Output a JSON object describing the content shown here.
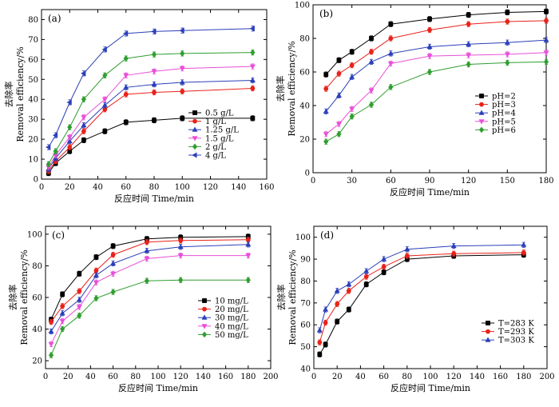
{
  "chart_data": [
    {
      "type": "line",
      "panel_label": "(a)",
      "xlabel": "反应时间 Time/min",
      "ylabel_cn": "去除率",
      "ylabel_en": "Removal efficiency/%",
      "xlim": [
        0,
        160
      ],
      "ylim": [
        0,
        85
      ],
      "xticks": [
        0,
        20,
        40,
        60,
        80,
        100,
        120,
        140,
        160
      ],
      "yticks": [
        0,
        10,
        20,
        30,
        40,
        50,
        60,
        70,
        80
      ],
      "x": [
        5,
        10,
        20,
        30,
        45,
        60,
        80,
        100,
        150
      ],
      "legend_position": "right",
      "series": [
        {
          "name": "0.5 g/L",
          "color": "#000000",
          "marker": "square",
          "values": [
            3,
            8,
            14,
            19.5,
            24,
            28.5,
            29.5,
            30.5,
            30.5
          ]
        },
        {
          "name": "1 g/L",
          "color": "#e8221a",
          "marker": "circle",
          "values": [
            4,
            9,
            16,
            24,
            35,
            42.5,
            43.5,
            44,
            45.5
          ]
        },
        {
          "name": "1.25 g/L",
          "color": "#2b3fb8",
          "marker": "triangle-up",
          "values": [
            5,
            10.5,
            19,
            27,
            37,
            46,
            47.5,
            48.5,
            49.5
          ]
        },
        {
          "name": "1.5 g/L",
          "color": "#e84fd8",
          "marker": "triangle-down",
          "values": [
            6,
            12,
            21,
            31,
            40,
            52,
            54,
            55.5,
            56.5
          ]
        },
        {
          "name": "2 g/L",
          "color": "#2f9e2f",
          "marker": "diamond",
          "values": [
            7.5,
            14,
            26,
            40,
            52,
            60.5,
            62.5,
            63,
            63.5
          ]
        },
        {
          "name": "4 g/L",
          "color": "#2b3fb8",
          "marker": "triangle-left",
          "values": [
            16,
            22,
            38.5,
            53,
            65,
            73,
            74,
            74.5,
            75.5
          ]
        }
      ]
    },
    {
      "type": "line",
      "panel_label": "(b)",
      "xlabel": "反应时间 Time/min",
      "ylabel_cn": "去除率",
      "ylabel_en": "Removal efficiency/%",
      "xlim": [
        0,
        180
      ],
      "ylim": [
        0,
        100
      ],
      "xticks": [
        0,
        30,
        60,
        90,
        120,
        150,
        180
      ],
      "yticks": [
        0,
        20,
        40,
        60,
        80,
        100
      ],
      "x": [
        10,
        20,
        30,
        45,
        60,
        90,
        120,
        150,
        180
      ],
      "legend_position": "bottom-right",
      "series": [
        {
          "name": "pH=2",
          "color": "#000000",
          "marker": "square",
          "values": [
            58.5,
            67,
            72,
            80,
            88.5,
            91.5,
            94,
            95.5,
            96
          ]
        },
        {
          "name": "pH=3",
          "color": "#e8221a",
          "marker": "circle",
          "values": [
            50,
            59,
            64,
            72,
            80,
            85,
            88.5,
            90,
            90.5
          ]
        },
        {
          "name": "pH=4",
          "color": "#2b3fb8",
          "marker": "triangle-up",
          "values": [
            36.5,
            46,
            57,
            66,
            71,
            75,
            76.5,
            77.5,
            79
          ]
        },
        {
          "name": "pH=5",
          "color": "#e84fd8",
          "marker": "triangle-down",
          "values": [
            23,
            29,
            38,
            49,
            65,
            69.5,
            70,
            70.5,
            71.5
          ]
        },
        {
          "name": "pH=6",
          "color": "#2f9e2f",
          "marker": "diamond",
          "values": [
            18.5,
            23,
            33.5,
            40.5,
            51,
            60,
            64.5,
            65.5,
            66
          ]
        }
      ]
    },
    {
      "type": "line",
      "panel_label": "(c)",
      "xlabel": "反应时间 Time/min",
      "ylabel_cn": "去除率",
      "ylabel_en": "Removal efficiency/%",
      "xlim": [
        0,
        200
      ],
      "ylim": [
        15,
        105
      ],
      "xticks": [
        0,
        20,
        40,
        60,
        80,
        100,
        120,
        140,
        160,
        180,
        200
      ],
      "yticks": [
        20,
        40,
        60,
        80,
        100
      ],
      "x": [
        5,
        15,
        30,
        45,
        60,
        90,
        120,
        180
      ],
      "legend_position": "bottom-right",
      "series": [
        {
          "name": "10 mg/L",
          "color": "#000000",
          "marker": "square",
          "values": [
            46,
            62,
            75,
            85.5,
            92.5,
            97,
            98,
            98.5
          ]
        },
        {
          "name": "20 mg/L",
          "color": "#e8221a",
          "marker": "circle",
          "values": [
            44.5,
            54.5,
            64,
            77,
            87,
            95,
            96,
            96.5
          ]
        },
        {
          "name": "30 mg/L",
          "color": "#2b3fb8",
          "marker": "triangle-up",
          "values": [
            38.5,
            50,
            58.5,
            74,
            81.5,
            89.5,
            92,
            93.5
          ]
        },
        {
          "name": "40 mg/L",
          "color": "#e84fd8",
          "marker": "triangle-down",
          "values": [
            30.5,
            45,
            54,
            69.5,
            75,
            84.5,
            86.5,
            86.5
          ]
        },
        {
          "name": "50 mg/L",
          "color": "#2f9e2f",
          "marker": "diamond",
          "values": [
            23.5,
            40,
            48.5,
            59.5,
            63.5,
            70.5,
            71,
            71
          ]
        }
      ]
    },
    {
      "type": "line",
      "panel_label": "(d)",
      "xlabel": "反应时间 Time/min",
      "ylabel_cn": "去除率",
      "ylabel_en": "Removal efficiency/%",
      "xlim": [
        0,
        200
      ],
      "ylim": [
        40,
        105
      ],
      "xticks": [
        0,
        20,
        40,
        60,
        80,
        100,
        120,
        140,
        160,
        180,
        200
      ],
      "yticks": [
        40,
        50,
        60,
        70,
        80,
        90,
        100
      ],
      "x": [
        5,
        10,
        20,
        30,
        45,
        60,
        80,
        120,
        180
      ],
      "legend_position": "bottom-right",
      "series": [
        {
          "name": "T=283 K",
          "color": "#000000",
          "marker": "square",
          "values": [
            46.5,
            51,
            61.5,
            67,
            78.5,
            84,
            90,
            91.5,
            92
          ]
        },
        {
          "name": "T=293 K",
          "color": "#e8221a",
          "marker": "circle",
          "values": [
            52,
            61,
            69.5,
            75.5,
            82,
            86.5,
            91.5,
            92.5,
            93
          ]
        },
        {
          "name": "T=303 K",
          "color": "#2b3fb8",
          "marker": "triangle-up",
          "values": [
            57.5,
            67,
            75.5,
            78.5,
            84.5,
            90,
            94.5,
            96,
            96.5
          ]
        }
      ]
    }
  ]
}
